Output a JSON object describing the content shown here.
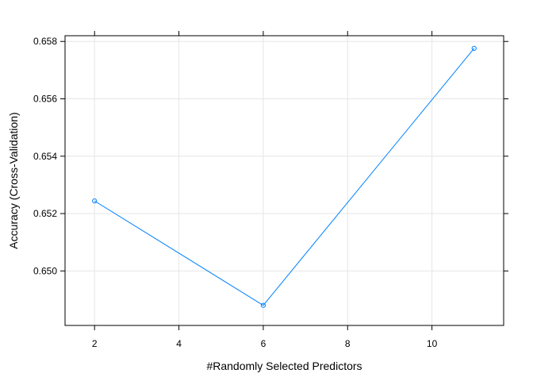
{
  "chart_data": {
    "type": "line",
    "title": "",
    "xlabel": "#Randomly Selected Predictors",
    "ylabel": "Accuracy (Cross-Validation)",
    "xlim": [
      1.3,
      11.7
    ],
    "ylim": [
      0.6481,
      0.6582
    ],
    "x_ticks": [
      2,
      4,
      6,
      8,
      10
    ],
    "y_ticks": [
      0.65,
      0.652,
      0.654,
      0.656,
      0.658
    ],
    "x_tick_labels": [
      "2",
      "4",
      "6",
      "8",
      "10"
    ],
    "y_tick_labels": [
      "0.650",
      "0.652",
      "0.654",
      "0.656",
      "0.658"
    ],
    "grid": true,
    "series": [
      {
        "color": "#0080ff",
        "marker": "circle",
        "x": [
          2,
          6,
          11
        ],
        "y": [
          0.65244,
          0.6488,
          0.65776
        ]
      }
    ]
  }
}
